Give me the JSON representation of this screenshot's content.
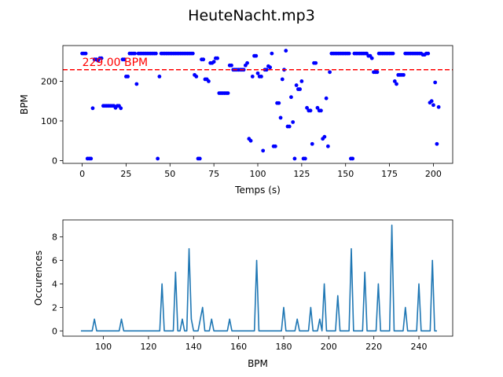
{
  "figure": {
    "title": "HeuteNacht.mp3"
  },
  "colors": {
    "scatter": "#0000ff",
    "threshold": "#ff0000",
    "line": "#1f77b4"
  },
  "chart_data": [
    {
      "type": "scatter",
      "xlabel": "Temps (s)",
      "ylabel": "BPM",
      "xlim": [
        -11,
        211
      ],
      "ylim": [
        -7,
        290
      ],
      "xticks": [
        0,
        25,
        50,
        75,
        100,
        125,
        150,
        175,
        200
      ],
      "yticks": [
        0,
        100,
        200
      ],
      "reference_line": {
        "value": 229,
        "label": "229.00 BPM"
      },
      "points": [
        [
          0,
          270
        ],
        [
          1,
          270
        ],
        [
          2,
          270
        ],
        [
          3,
          5
        ],
        [
          4,
          5
        ],
        [
          5,
          5
        ],
        [
          6,
          132
        ],
        [
          7,
          255
        ],
        [
          8,
          255
        ],
        [
          9,
          252
        ],
        [
          10,
          258
        ],
        [
          11,
          258
        ],
        [
          12,
          138
        ],
        [
          13,
          138
        ],
        [
          14,
          138
        ],
        [
          15,
          138
        ],
        [
          16,
          138
        ],
        [
          17,
          138
        ],
        [
          18,
          138
        ],
        [
          19,
          133
        ],
        [
          20,
          138
        ],
        [
          21,
          138
        ],
        [
          22,
          132
        ],
        [
          23,
          255
        ],
        [
          24,
          255
        ],
        [
          25,
          212
        ],
        [
          26,
          212
        ],
        [
          27,
          270
        ],
        [
          28,
          270
        ],
        [
          29,
          270
        ],
        [
          30,
          270
        ],
        [
          31,
          193
        ],
        [
          32,
          270
        ],
        [
          33,
          270
        ],
        [
          34,
          270
        ],
        [
          35,
          270
        ],
        [
          36,
          270
        ],
        [
          37,
          270
        ],
        [
          38,
          270
        ],
        [
          39,
          270
        ],
        [
          40,
          270
        ],
        [
          41,
          270
        ],
        [
          42,
          270
        ],
        [
          43,
          5
        ],
        [
          44,
          212
        ],
        [
          45,
          270
        ],
        [
          46,
          270
        ],
        [
          47,
          270
        ],
        [
          48,
          270
        ],
        [
          49,
          270
        ],
        [
          50,
          270
        ],
        [
          51,
          270
        ],
        [
          52,
          270
        ],
        [
          53,
          270
        ],
        [
          54,
          270
        ],
        [
          55,
          270
        ],
        [
          56,
          270
        ],
        [
          57,
          270
        ],
        [
          58,
          270
        ],
        [
          59,
          270
        ],
        [
          60,
          270
        ],
        [
          61,
          270
        ],
        [
          62,
          270
        ],
        [
          63,
          270
        ],
        [
          64,
          216
        ],
        [
          65,
          212
        ],
        [
          66,
          5
        ],
        [
          67,
          5
        ],
        [
          68,
          255
        ],
        [
          69,
          255
        ],
        [
          70,
          205
        ],
        [
          71,
          205
        ],
        [
          72,
          200
        ],
        [
          73,
          246
        ],
        [
          74,
          246
        ],
        [
          75,
          249
        ],
        [
          76,
          258
        ],
        [
          77,
          258
        ],
        [
          78,
          170
        ],
        [
          79,
          170
        ],
        [
          80,
          170
        ],
        [
          81,
          170
        ],
        [
          82,
          170
        ],
        [
          83,
          170
        ],
        [
          84,
          240
        ],
        [
          85,
          240
        ],
        [
          86,
          229
        ],
        [
          87,
          229
        ],
        [
          88,
          229
        ],
        [
          89,
          229
        ],
        [
          90,
          229
        ],
        [
          91,
          229
        ],
        [
          92,
          229
        ],
        [
          93,
          240
        ],
        [
          94,
          246
        ],
        [
          95,
          55
        ],
        [
          96,
          50
        ],
        [
          97,
          212
        ],
        [
          98,
          264
        ],
        [
          99,
          264
        ],
        [
          100,
          220
        ],
        [
          101,
          212
        ],
        [
          102,
          212
        ],
        [
          103,
          25
        ],
        [
          104,
          229
        ],
        [
          105,
          229
        ],
        [
          106,
          238
        ],
        [
          107,
          235
        ],
        [
          108,
          270
        ],
        [
          109,
          36
        ],
        [
          110,
          36
        ],
        [
          111,
          145
        ],
        [
          112,
          145
        ],
        [
          113,
          108
        ],
        [
          114,
          205
        ],
        [
          115,
          229
        ],
        [
          116,
          277
        ],
        [
          117,
          86
        ],
        [
          118,
          86
        ],
        [
          119,
          160
        ],
        [
          120,
          97
        ],
        [
          121,
          5
        ],
        [
          122,
          190
        ],
        [
          123,
          180
        ],
        [
          124,
          180
        ],
        [
          125,
          200
        ],
        [
          126,
          5
        ],
        [
          127,
          5
        ],
        [
          128,
          133
        ],
        [
          129,
          126
        ],
        [
          130,
          126
        ],
        [
          131,
          42
        ],
        [
          132,
          246
        ],
        [
          133,
          246
        ],
        [
          134,
          133
        ],
        [
          135,
          126
        ],
        [
          136,
          126
        ],
        [
          137,
          55
        ],
        [
          138,
          60
        ],
        [
          139,
          157
        ],
        [
          140,
          36
        ],
        [
          141,
          223
        ],
        [
          142,
          270
        ],
        [
          143,
          270
        ],
        [
          144,
          270
        ],
        [
          145,
          270
        ],
        [
          146,
          270
        ],
        [
          147,
          270
        ],
        [
          148,
          270
        ],
        [
          149,
          270
        ],
        [
          150,
          270
        ],
        [
          151,
          270
        ],
        [
          152,
          270
        ],
        [
          153,
          5
        ],
        [
          154,
          5
        ],
        [
          155,
          270
        ],
        [
          156,
          270
        ],
        [
          157,
          270
        ],
        [
          158,
          270
        ],
        [
          159,
          270
        ],
        [
          160,
          270
        ],
        [
          161,
          270
        ],
        [
          162,
          270
        ],
        [
          163,
          264
        ],
        [
          164,
          264
        ],
        [
          165,
          258
        ],
        [
          166,
          223
        ],
        [
          167,
          223
        ],
        [
          168,
          223
        ],
        [
          169,
          270
        ],
        [
          170,
          270
        ],
        [
          171,
          270
        ],
        [
          172,
          270
        ],
        [
          173,
          270
        ],
        [
          174,
          270
        ],
        [
          175,
          270
        ],
        [
          176,
          270
        ],
        [
          177,
          270
        ],
        [
          178,
          200
        ],
        [
          179,
          193
        ],
        [
          180,
          216
        ],
        [
          181,
          216
        ],
        [
          182,
          216
        ],
        [
          183,
          216
        ],
        [
          184,
          270
        ],
        [
          185,
          270
        ],
        [
          186,
          270
        ],
        [
          187,
          270
        ],
        [
          188,
          270
        ],
        [
          189,
          270
        ],
        [
          190,
          270
        ],
        [
          191,
          270
        ],
        [
          192,
          270
        ],
        [
          193,
          270
        ],
        [
          194,
          267
        ],
        [
          195,
          267
        ],
        [
          196,
          270
        ],
        [
          197,
          270
        ],
        [
          198,
          146
        ],
        [
          199,
          150
        ],
        [
          200,
          140
        ],
        [
          201,
          197
        ],
        [
          202,
          42
        ],
        [
          203,
          135
        ]
      ]
    },
    {
      "type": "line",
      "xlabel": "BPM",
      "ylabel": "Occurences",
      "xlim": [
        82,
        255
      ],
      "ylim": [
        -0.45,
        9.45
      ],
      "xticks": [
        100,
        120,
        140,
        160,
        180,
        200,
        220,
        240
      ],
      "yticks": [
        0,
        2,
        4,
        6,
        8
      ],
      "x": [
        90,
        95,
        96,
        97,
        107,
        108,
        109,
        125,
        126,
        127,
        131,
        132,
        133,
        134,
        135,
        136,
        137,
        138,
        139,
        140,
        142,
        143,
        144,
        145,
        147,
        148,
        149,
        155,
        156,
        157,
        167,
        168,
        169,
        179,
        180,
        181,
        185,
        186,
        187,
        191,
        192,
        193,
        195,
        196,
        197,
        198,
        199,
        203,
        204,
        205,
        209,
        210,
        211,
        215,
        216,
        217,
        221,
        222,
        223,
        227,
        228,
        229,
        233,
        234,
        235,
        239,
        240,
        241,
        245,
        246,
        247,
        248
      ],
      "y": [
        0,
        0,
        1,
        0,
        0,
        1,
        0,
        0,
        4,
        0,
        0,
        5,
        0,
        0,
        1,
        0,
        0,
        7,
        1,
        0,
        0,
        1,
        2,
        0,
        0,
        1,
        0,
        0,
        1,
        0,
        0,
        6,
        0,
        0,
        2,
        0,
        0,
        1,
        0,
        0,
        2,
        0,
        0,
        1,
        0,
        4,
        0,
        0,
        3,
        0,
        0,
        7,
        0,
        0,
        5,
        0,
        0,
        4,
        0,
        0,
        9,
        0,
        0,
        2,
        0,
        0,
        4,
        0,
        0,
        6,
        0,
        0
      ]
    }
  ]
}
